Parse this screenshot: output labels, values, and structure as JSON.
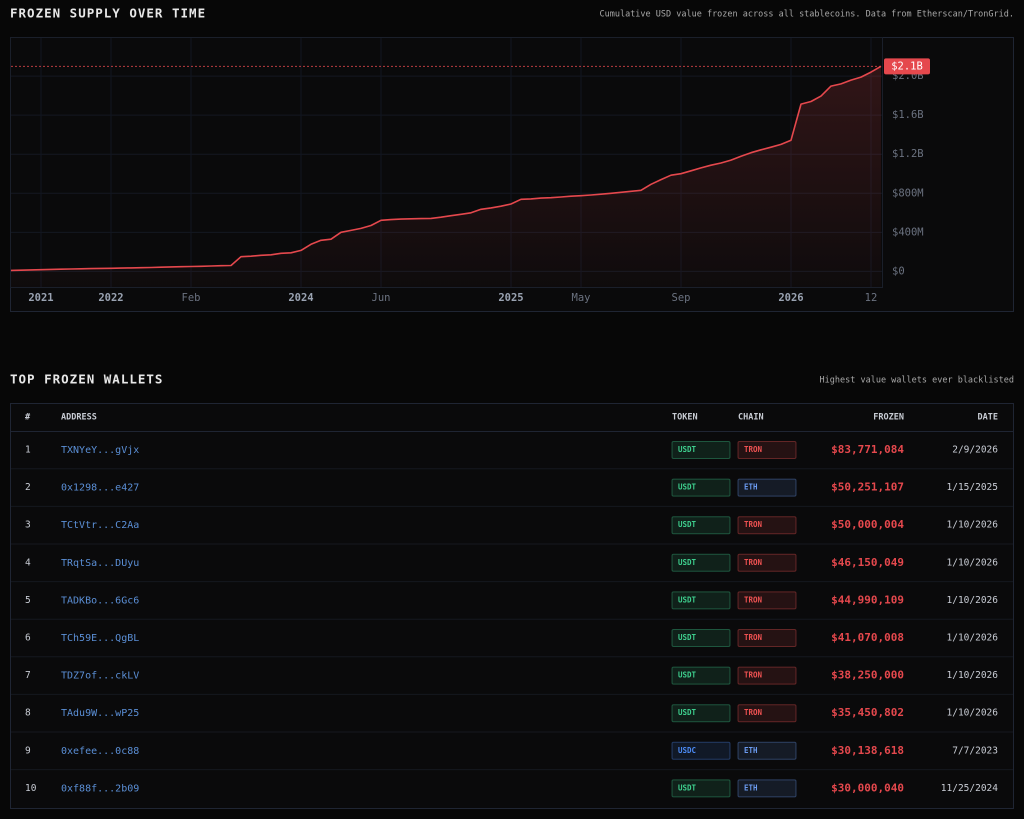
{
  "chart_section": {
    "title": "FROZEN SUPPLY OVER TIME",
    "subtitle": "Cumulative USD value frozen across all stablecoins. Data from Etherscan/TronGrid."
  },
  "chart_data": {
    "type": "line",
    "categories": [
      null,
      null,
      null,
      "2021",
      null,
      null,
      null,
      null,
      null,
      null,
      "2022",
      null,
      null,
      null,
      null,
      null,
      null,
      null,
      "Feb",
      null,
      null,
      null,
      null,
      null,
      null,
      null,
      null,
      null,
      null,
      "2024",
      null,
      null,
      null,
      null,
      null,
      null,
      null,
      "Jun",
      null,
      null,
      null,
      null,
      null,
      null,
      null,
      null,
      null,
      null,
      null,
      null,
      "2025",
      null,
      null,
      null,
      null,
      null,
      null,
      "May",
      null,
      null,
      null,
      null,
      null,
      null,
      null,
      null,
      null,
      "Sep",
      null,
      null,
      null,
      null,
      null,
      null,
      null,
      null,
      null,
      null,
      "2026",
      null,
      null,
      null,
      null,
      null,
      null,
      null,
      "12",
      null
    ],
    "series": [
      {
        "color": "#e5484d",
        "values": [
          10000000,
          12000000,
          15000000,
          17000000,
          20000000,
          22000000,
          24000000,
          26000000,
          28000000,
          30000000,
          32000000,
          34000000,
          36000000,
          38000000,
          40000000,
          43000000,
          46000000,
          48000000,
          50000000,
          52000000,
          55000000,
          58000000,
          60000000,
          150000000,
          155000000,
          165000000,
          170000000,
          185000000,
          190000000,
          215000000,
          277000000,
          318000000,
          330000000,
          400000000,
          420000000,
          440000000,
          470000000,
          523000000,
          530000000,
          535000000,
          538000000,
          540000000,
          543000000,
          555000000,
          570000000,
          585000000,
          600000000,
          636000000,
          650000000,
          667000000,
          690000000,
          738000000,
          742000000,
          750000000,
          755000000,
          762000000,
          770000000,
          775000000,
          782000000,
          790000000,
          800000000,
          810000000,
          820000000,
          830000000,
          892000000,
          940000000,
          985000000,
          1000000000,
          1030000000,
          1060000000,
          1087000000,
          1110000000,
          1140000000,
          1180000000,
          1215000000,
          1245000000,
          1272000000,
          1300000000,
          1343000000,
          1713000000,
          1740000000,
          1795000000,
          1897000000,
          1920000000,
          1959000000,
          1990000000,
          2041000000,
          2100000000
        ]
      }
    ],
    "ylim": [
      -160000000,
      2390000000
    ],
    "yticks": [
      {
        "value": 0,
        "label": "$0"
      },
      {
        "value": 400000000,
        "label": "$400M"
      },
      {
        "value": 800000000,
        "label": "$800M"
      },
      {
        "value": 1200000000,
        "label": "$1.2B"
      },
      {
        "value": 1600000000,
        "label": "$1.6B"
      },
      {
        "value": 2000000000,
        "label": "$2.0B"
      }
    ],
    "grid": true,
    "annotation": {
      "value": 2100000000,
      "label": "$2.1B"
    }
  },
  "table_section": {
    "title": "TOP FROZEN WALLETS",
    "subtitle": "Highest value wallets ever blacklisted",
    "columns": [
      "#",
      "ADDRESS",
      "TOKEN",
      "CHAIN",
      "FROZEN",
      "DATE"
    ],
    "badge_colors": {
      "USDT": "#3ecf8e",
      "USDC": "#4c8bf5",
      "TRON": "#f05252",
      "ETH": "#6b9bf0"
    },
    "rows": [
      {
        "rank": 1,
        "address": "TXNYeY...gVjx",
        "token": "USDT",
        "chain": "TRON",
        "frozen": "$83,771,084",
        "date": "2/9/2026"
      },
      {
        "rank": 2,
        "address": "0x1298...e427",
        "token": "USDT",
        "chain": "ETH",
        "frozen": "$50,251,107",
        "date": "1/15/2025"
      },
      {
        "rank": 3,
        "address": "TCtVtr...C2Aa",
        "token": "USDT",
        "chain": "TRON",
        "frozen": "$50,000,004",
        "date": "1/10/2026"
      },
      {
        "rank": 4,
        "address": "TRqtSa...DUyu",
        "token": "USDT",
        "chain": "TRON",
        "frozen": "$46,150,049",
        "date": "1/10/2026"
      },
      {
        "rank": 5,
        "address": "TADKBo...6Gc6",
        "token": "USDT",
        "chain": "TRON",
        "frozen": "$44,990,109",
        "date": "1/10/2026"
      },
      {
        "rank": 6,
        "address": "TCh59E...QgBL",
        "token": "USDT",
        "chain": "TRON",
        "frozen": "$41,070,008",
        "date": "1/10/2026"
      },
      {
        "rank": 7,
        "address": "TDZ7of...ckLV",
        "token": "USDT",
        "chain": "TRON",
        "frozen": "$38,250,000",
        "date": "1/10/2026"
      },
      {
        "rank": 8,
        "address": "TAdu9W...wP25",
        "token": "USDT",
        "chain": "TRON",
        "frozen": "$35,450,802",
        "date": "1/10/2026"
      },
      {
        "rank": 9,
        "address": "0xefee...0c88",
        "token": "USDC",
        "chain": "ETH",
        "frozen": "$30,138,618",
        "date": "7/7/2023"
      },
      {
        "rank": 10,
        "address": "0xf88f...2b09",
        "token": "USDT",
        "chain": "ETH",
        "frozen": "$30,000,040",
        "date": "11/25/2024"
      }
    ]
  }
}
